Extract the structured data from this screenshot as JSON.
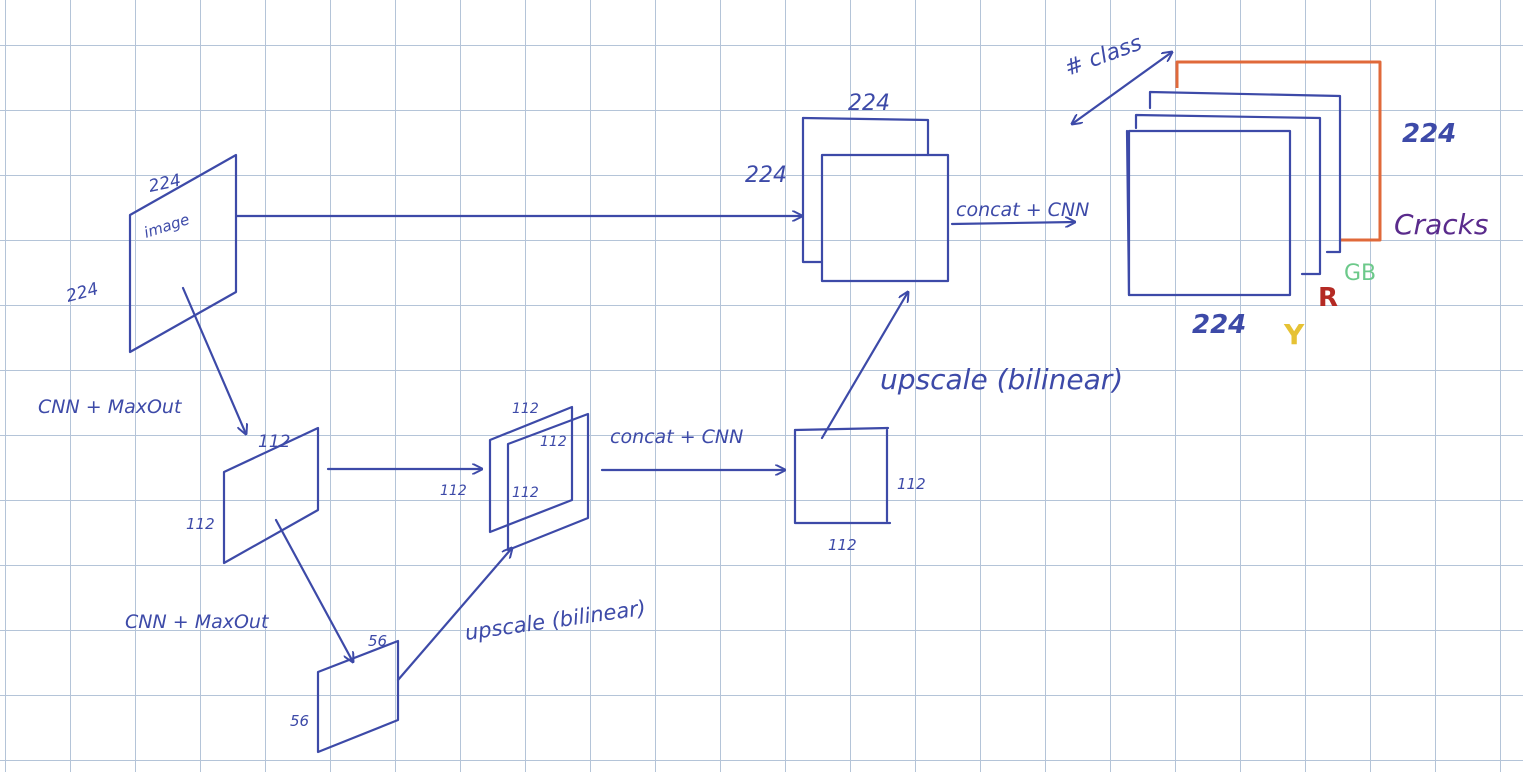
{
  "colors": {
    "ink": "#3d4aa8",
    "grid": "#b4c4d8",
    "cracks_channel": "#e0693a",
    "gb_channel": "#6cc98a",
    "r_channel": "#b42a24",
    "y_channel": "#e6c234",
    "cracks_label": "#5a2b8c"
  },
  "input": {
    "label": "image",
    "width": "224",
    "height": "224"
  },
  "step1": {
    "op": "CNN + MaxOut",
    "width": "112",
    "height": "112"
  },
  "step2": {
    "op": "CNN + MaxOut",
    "width": "56",
    "height": "56"
  },
  "up1": {
    "op": "upscale (bilinear)"
  },
  "mid_concat": {
    "front": "112",
    "back_width": "112",
    "back_height": "112"
  },
  "concat1": {
    "op": "concat + CNN"
  },
  "mid_out": {
    "height": "112",
    "width": "112"
  },
  "up2": {
    "op": "upscale (bilinear)"
  },
  "top_concat": {
    "width": "224",
    "height": "224"
  },
  "concat2": {
    "op": "concat + CNN"
  },
  "output": {
    "depth_label": "# class",
    "height": "224",
    "width": "224",
    "classes": {
      "cracks": "Cracks",
      "gb": "GB",
      "r": "R",
      "y": "Y"
    }
  }
}
